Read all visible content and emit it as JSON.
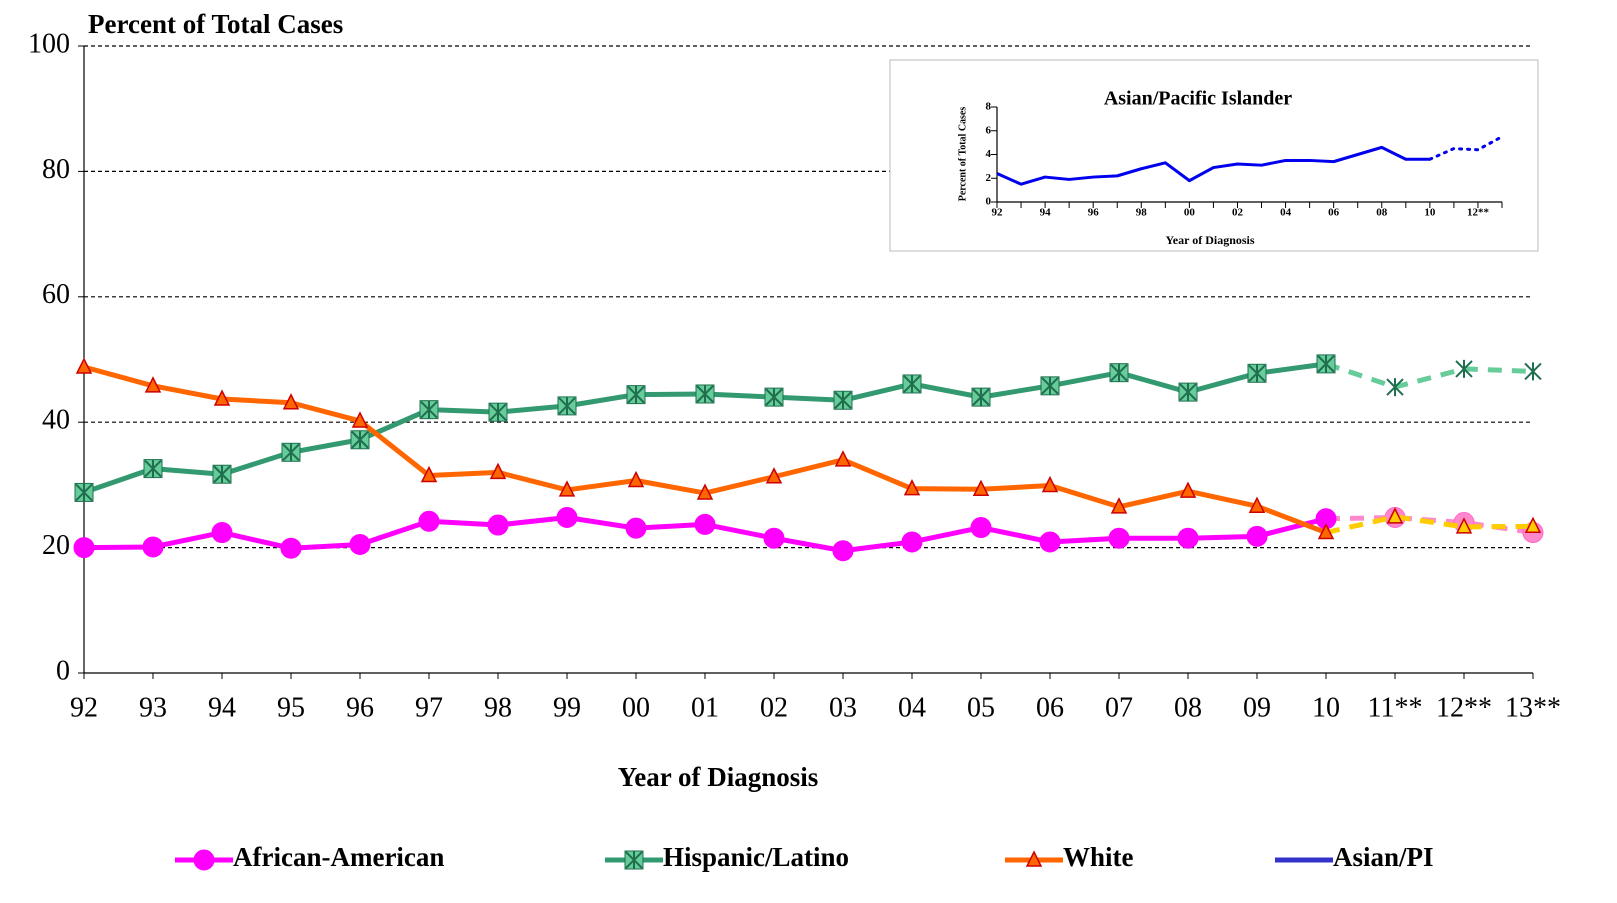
{
  "chart_data": [
    {
      "type": "line",
      "title": "Percent of Total Cases",
      "xlabel": "Year of  Diagnosis",
      "categories": [
        "92",
        "93",
        "94",
        "95",
        "96",
        "97",
        "98",
        "99",
        "00",
        "01",
        "02",
        "03",
        "04",
        "05",
        "06",
        "07",
        "08",
        "09",
        "10",
        "11**",
        "12**",
        "13**"
      ],
      "ylim": [
        0,
        100
      ],
      "yticks": [
        0,
        20,
        40,
        60,
        80,
        100
      ],
      "grid": true,
      "legend": "bottom",
      "dash_from": 18,
      "series": [
        {
          "name": "African-American",
          "color": "#ff00ff",
          "dash_color": "#ff88cc",
          "marker": "circle",
          "values": [
            20.0,
            20.1,
            22.4,
            19.9,
            20.5,
            24.2,
            23.6,
            24.8,
            23.1,
            23.7,
            21.5,
            19.5,
            20.9,
            23.2,
            20.9,
            21.5,
            21.5,
            21.8,
            24.6,
            24.8,
            24.0,
            22.4
          ]
        },
        {
          "name": "Hispanic/Latino",
          "color": "#339970",
          "dash_color": "#66cc99",
          "marker": "boxstar",
          "values": [
            28.8,
            32.6,
            31.7,
            35.2,
            37.2,
            42.0,
            41.6,
            42.6,
            44.4,
            44.5,
            44.0,
            43.5,
            46.1,
            44.0,
            45.8,
            47.9,
            44.8,
            47.8,
            49.3,
            45.6,
            48.5,
            48.1
          ]
        },
        {
          "name": "White",
          "color": "#ff6600",
          "dash_color": "#ffcc00",
          "marker": "triangle",
          "values": [
            48.8,
            45.8,
            43.7,
            43.1,
            40.2,
            31.5,
            32.0,
            29.2,
            30.7,
            28.7,
            31.3,
            34.0,
            29.4,
            29.3,
            29.9,
            26.5,
            29.0,
            26.6,
            22.4,
            24.9,
            23.3,
            23.4
          ]
        },
        {
          "name": "Asian/PI",
          "color": "#3333cc",
          "dash_color": "#3333cc",
          "marker": "none",
          "values": [
            null,
            null,
            null,
            null,
            null,
            null,
            null,
            null,
            null,
            null,
            null,
            null,
            null,
            null,
            null,
            null,
            null,
            null,
            null,
            null,
            null,
            null
          ]
        }
      ]
    },
    {
      "type": "line",
      "title": "Asian/Pacific Islander",
      "xlabel": "Year of  Diagnosis",
      "ylabel": "Percent of Total Cases",
      "categories": [
        "92",
        null,
        "94",
        null,
        "96",
        null,
        "98",
        null,
        "00",
        null,
        "02",
        null,
        "04",
        null,
        "06",
        null,
        "08",
        null,
        "10",
        null,
        "12**",
        null
      ],
      "ylim": [
        0,
        8
      ],
      "yticks": [
        0,
        2,
        4,
        6,
        8
      ],
      "grid": false,
      "dash_from": 18,
      "series": [
        {
          "color": "#0000ee",
          "dash_color": "#0000ee",
          "marker": "none",
          "values": [
            2.4,
            1.5,
            2.1,
            1.9,
            2.1,
            2.2,
            2.8,
            3.3,
            1.8,
            2.9,
            3.2,
            3.1,
            3.5,
            3.5,
            3.4,
            4.0,
            4.6,
            3.6,
            3.6,
            4.5,
            4.4,
            5.5
          ]
        }
      ]
    }
  ]
}
